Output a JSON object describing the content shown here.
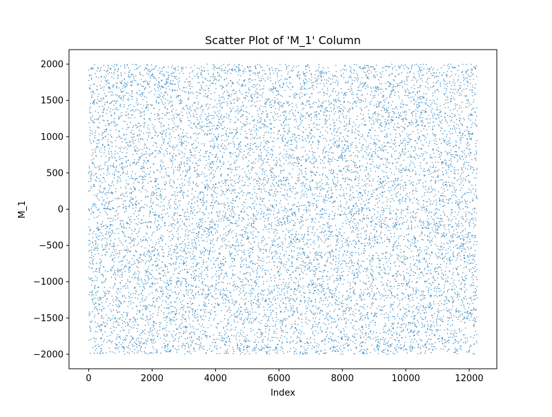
{
  "chart_data": {
    "type": "scatter",
    "title": "Scatter Plot of 'M_1' Column",
    "xlabel": "Index",
    "ylabel": "M_1",
    "xlim": [
      -620,
      12870
    ],
    "ylim": [
      -2200,
      2200
    ],
    "xticks": [
      0,
      2000,
      4000,
      6000,
      8000,
      10000,
      12000
    ],
    "xtick_labels": [
      "0",
      "2000",
      "4000",
      "6000",
      "8000",
      "10000",
      "12000"
    ],
    "yticks": [
      -2000,
      -1500,
      -1000,
      -500,
      0,
      500,
      1000,
      1500,
      2000
    ],
    "ytick_labels": [
      "−2000",
      "−1500",
      "−1000",
      "−500",
      "0",
      "500",
      "1000",
      "1500",
      "2000"
    ],
    "grid": false,
    "marker_color": "#1f77b4",
    "series": [
      {
        "distribution": "uniform",
        "x_min": 0,
        "x_max": 12250,
        "y_min": -2000,
        "y_max": 2000,
        "count": 12250
      }
    ]
  }
}
